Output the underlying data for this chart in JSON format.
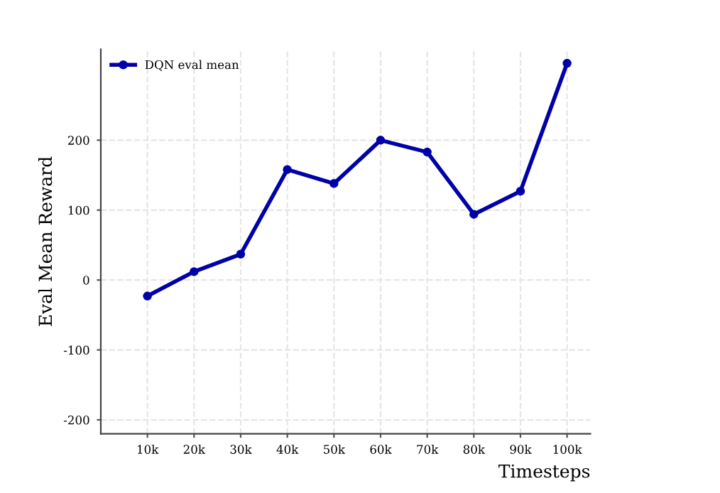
{
  "chart_data": {
    "type": "line",
    "ylabel": "Eval Mean Reward",
    "xlabel": "Timesteps",
    "x": [
      10000,
      20000,
      30000,
      40000,
      50000,
      60000,
      70000,
      80000,
      90000,
      100000
    ],
    "series": [
      {
        "name": "DQN eval mean",
        "color": "#0000a8",
        "values": [
          -23,
          12,
          37,
          158,
          138,
          200,
          183,
          94,
          127,
          310
        ]
      }
    ],
    "xlim": [
      0,
      105000
    ],
    "xticks": [
      {
        "value": 10000,
        "label": "10k"
      },
      {
        "value": 20000,
        "label": "20k"
      },
      {
        "value": 30000,
        "label": "30k"
      },
      {
        "value": 40000,
        "label": "40k"
      },
      {
        "value": 50000,
        "label": "50k"
      },
      {
        "value": 60000,
        "label": "60k"
      },
      {
        "value": 70000,
        "label": "70k"
      },
      {
        "value": 80000,
        "label": "80k"
      },
      {
        "value": 90000,
        "label": "90k"
      },
      {
        "value": 100000,
        "label": "100k"
      }
    ],
    "ylim": [
      -220,
      330
    ],
    "yticks": [
      -200,
      -100,
      0,
      100,
      200
    ],
    "grid": true,
    "legend": "top left",
    "marker": "circle",
    "line_style": "solid"
  }
}
